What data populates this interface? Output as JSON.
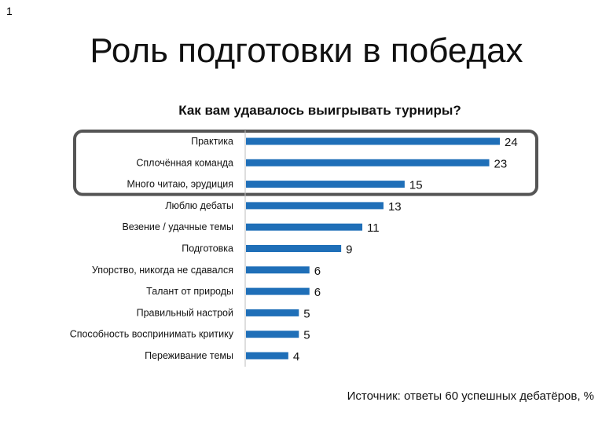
{
  "slide": {
    "number": "1",
    "title": "Роль подготовки в победах",
    "source": "Источник: ответы 60 успешных дебатёров, %"
  },
  "chart_data": {
    "type": "bar",
    "orientation": "horizontal",
    "title": "Как вам удавалось выигрывать турниры?",
    "categories": [
      "Практика",
      "Сплочённая команда",
      "Много читаю, эрудиция",
      "Люблю дебаты",
      "Везение / удачные темы",
      "Подготовка",
      "Упорство, никогда не сдавался",
      "Талант от природы",
      "Правильный настрой",
      "Способность воспринимать критику",
      "Переживание темы"
    ],
    "values": [
      24,
      23,
      15,
      13,
      11,
      9,
      6,
      6,
      5,
      5,
      4
    ],
    "value_labels": [
      "24",
      "23",
      "15",
      "13",
      "11",
      "9",
      "6",
      "6",
      "5",
      "5",
      "4"
    ],
    "xlim": [
      0,
      24
    ],
    "bar_color": "#1f6fb8",
    "highlight_color": "#555555",
    "highlighted_categories": [
      0,
      1,
      2
    ],
    "grid": false,
    "legend": "none"
  }
}
